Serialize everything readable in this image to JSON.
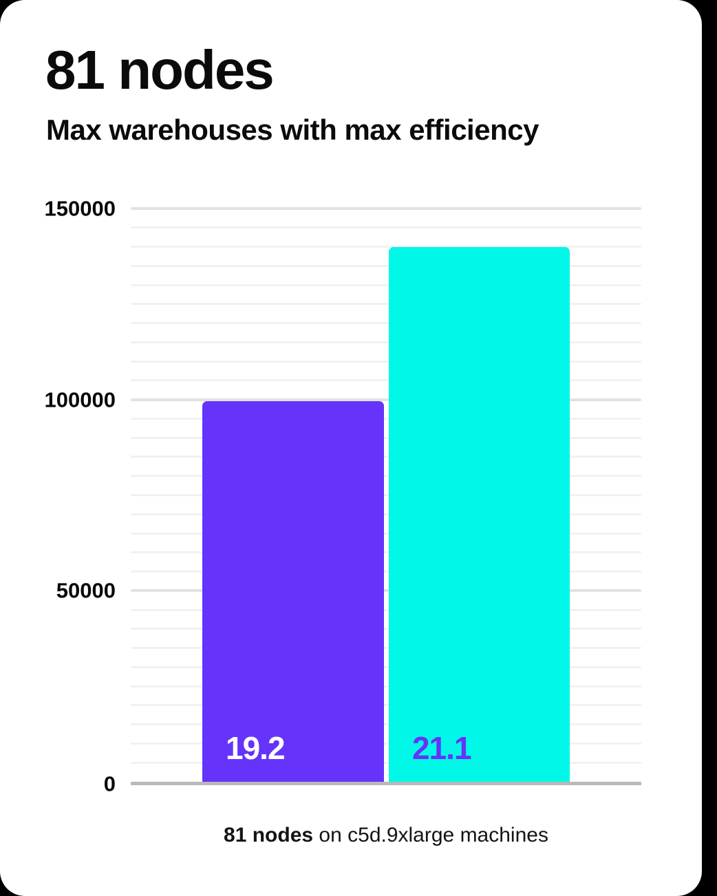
{
  "page": {
    "background_color": "#000000",
    "card_color": "#ffffff"
  },
  "header": {
    "title": "81 nodes",
    "subtitle": "Max warehouses with max efficiency"
  },
  "chart_data": {
    "type": "bar",
    "title": "81 nodes",
    "subtitle": "Max warehouses with max efficiency",
    "series": [
      {
        "bar_label": "19.2",
        "value": 99500,
        "color": "#6633fa",
        "label_color": "#ffffff"
      },
      {
        "bar_label": "21.1",
        "value": 140000,
        "color": "#00f8e8",
        "label_color": "#6633fa"
      }
    ],
    "ylim": [
      0,
      150000
    ],
    "yticks": [
      0,
      50000,
      100000,
      150000
    ],
    "ytick_labels": [
      "0",
      "50000",
      "100000",
      "150000"
    ],
    "minor_grid_step": 5000,
    "grid": true,
    "legend": "none",
    "grid_colors": {
      "minor": "#f1f1f1",
      "major": "#e2e2e2",
      "baseline": "#b9b9b9"
    }
  },
  "caption": {
    "bold": "81 nodes",
    "rest": " on c5d.9xlarge machines"
  }
}
